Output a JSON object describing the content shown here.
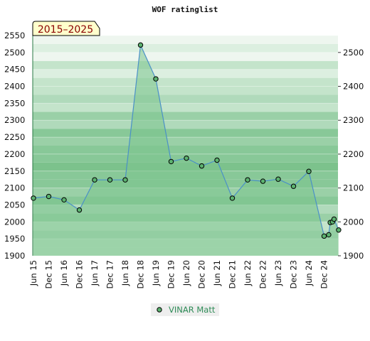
{
  "chart_data": {
    "type": "area",
    "title": "WOF ratinglist",
    "period_badge": "2015–2025",
    "ylim": [
      1900,
      2550
    ],
    "yticks_left": [
      1900,
      1950,
      2000,
      2050,
      2100,
      2150,
      2200,
      2250,
      2300,
      2350,
      2400,
      2450,
      2500,
      2550
    ],
    "yticks_right": [
      1900,
      2000,
      2100,
      2200,
      2300,
      2400,
      2500
    ],
    "x_labels": [
      "Jun 15",
      "Dec 15",
      "Jun 16",
      "Dec 16",
      "Jun 17",
      "Dec 17",
      "Jun 18",
      "Dec 18",
      "Jun 19",
      "Dec 19",
      "Jun 20",
      "Dec 20",
      "Jun 21",
      "Dec 21",
      "Jun 22",
      "Dec 22",
      "Jun 23",
      "Dec 23",
      "Jun 24",
      "Dec 24"
    ],
    "series": [
      {
        "name": "VINAR Matt",
        "color": "#2e8b57",
        "line_color": "#4a90c8",
        "fill_color": "#7cc48e",
        "points": [
          {
            "x": 0,
            "y": 2070
          },
          {
            "x": 1,
            "y": 2075
          },
          {
            "x": 2,
            "y": 2065
          },
          {
            "x": 3,
            "y": 2035
          },
          {
            "x": 4,
            "y": 2124
          },
          {
            "x": 5,
            "y": 2124
          },
          {
            "x": 6,
            "y": 2124
          },
          {
            "x": 7,
            "y": 2522
          },
          {
            "x": 8,
            "y": 2422
          },
          {
            "x": 9,
            "y": 2178
          },
          {
            "x": 10,
            "y": 2188
          },
          {
            "x": 11,
            "y": 2165
          },
          {
            "x": 12,
            "y": 2182
          },
          {
            "x": 13,
            "y": 2070
          },
          {
            "x": 14,
            "y": 2124
          },
          {
            "x": 15,
            "y": 2120
          },
          {
            "x": 16,
            "y": 2126
          },
          {
            "x": 17,
            "y": 2105
          },
          {
            "x": 18,
            "y": 2149
          },
          {
            "x": 19,
            "y": 1958
          },
          {
            "x": 19.3,
            "y": 1962
          },
          {
            "x": 19.4,
            "y": 1998
          },
          {
            "x": 19.55,
            "y": 2000
          },
          {
            "x": 19.65,
            "y": 2008
          },
          {
            "x": 19.95,
            "y": 1976
          }
        ]
      }
    ],
    "grid": true,
    "legend_position": "bottom-center"
  }
}
